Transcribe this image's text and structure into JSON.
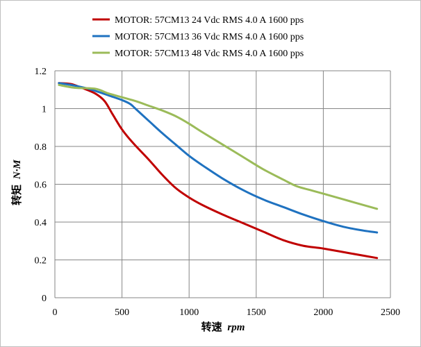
{
  "chart_data": {
    "type": "line",
    "title": "",
    "xlabel_main": "转速",
    "xlabel_unit": "rpm",
    "ylabel_main": "转矩",
    "ylabel_unit": "N·M",
    "xlim": [
      0,
      2500
    ],
    "ylim": [
      0,
      1.2
    ],
    "xticks": [
      0,
      500,
      1000,
      1500,
      2000,
      2500
    ],
    "yticks": [
      0,
      0.2,
      0.4,
      0.6,
      0.8,
      1,
      1.2
    ],
    "xtick_labels": [
      "0",
      "500",
      "1000",
      "1500",
      "2000",
      "2500"
    ],
    "ytick_labels": [
      "0",
      "0.2",
      "0.4",
      "0.6",
      "0.8",
      "1",
      "1.2"
    ],
    "grid": true,
    "legend_position": "top",
    "series": [
      {
        "name": "MOTOR: 57CM13 24 Vdc  RMS 4.0 A  1600 pps",
        "color": "#c00000",
        "points": [
          [
            30,
            1.135
          ],
          [
            120,
            1.13
          ],
          [
            200,
            1.11
          ],
          [
            300,
            1.08
          ],
          [
            370,
            1.04
          ],
          [
            430,
            0.97
          ],
          [
            500,
            0.89
          ],
          [
            580,
            0.82
          ],
          [
            700,
            0.73
          ],
          [
            800,
            0.65
          ],
          [
            900,
            0.58
          ],
          [
            1000,
            0.53
          ],
          [
            1100,
            0.49
          ],
          [
            1250,
            0.44
          ],
          [
            1400,
            0.395
          ],
          [
            1550,
            0.35
          ],
          [
            1700,
            0.305
          ],
          [
            1850,
            0.275
          ],
          [
            2000,
            0.26
          ],
          [
            2200,
            0.235
          ],
          [
            2400,
            0.21
          ]
        ]
      },
      {
        "name": "MOTOR: 57CM13 36 Vdc  RMS 4.0 A  1600 pps",
        "color": "#1f72c0",
        "points": [
          [
            30,
            1.135
          ],
          [
            120,
            1.125
          ],
          [
            250,
            1.105
          ],
          [
            400,
            1.07
          ],
          [
            500,
            1.045
          ],
          [
            560,
            1.025
          ],
          [
            600,
            1.0
          ],
          [
            700,
            0.935
          ],
          [
            800,
            0.87
          ],
          [
            900,
            0.81
          ],
          [
            1000,
            0.75
          ],
          [
            1100,
            0.7
          ],
          [
            1250,
            0.63
          ],
          [
            1400,
            0.57
          ],
          [
            1550,
            0.52
          ],
          [
            1700,
            0.48
          ],
          [
            1850,
            0.44
          ],
          [
            2000,
            0.405
          ],
          [
            2150,
            0.375
          ],
          [
            2300,
            0.355
          ],
          [
            2400,
            0.345
          ]
        ]
      },
      {
        "name": "MOTOR: 57CM13 48 Vdc  RMS 4.0 A  1600 pps",
        "color": "#9bbb59",
        "points": [
          [
            30,
            1.125
          ],
          [
            150,
            1.11
          ],
          [
            300,
            1.105
          ],
          [
            400,
            1.08
          ],
          [
            500,
            1.06
          ],
          [
            600,
            1.04
          ],
          [
            700,
            1.015
          ],
          [
            800,
            0.99
          ],
          [
            900,
            0.96
          ],
          [
            1000,
            0.92
          ],
          [
            1100,
            0.875
          ],
          [
            1250,
            0.81
          ],
          [
            1400,
            0.745
          ],
          [
            1550,
            0.68
          ],
          [
            1700,
            0.625
          ],
          [
            1800,
            0.59
          ],
          [
            1900,
            0.57
          ],
          [
            2000,
            0.55
          ],
          [
            2200,
            0.51
          ],
          [
            2400,
            0.47
          ]
        ]
      }
    ]
  }
}
